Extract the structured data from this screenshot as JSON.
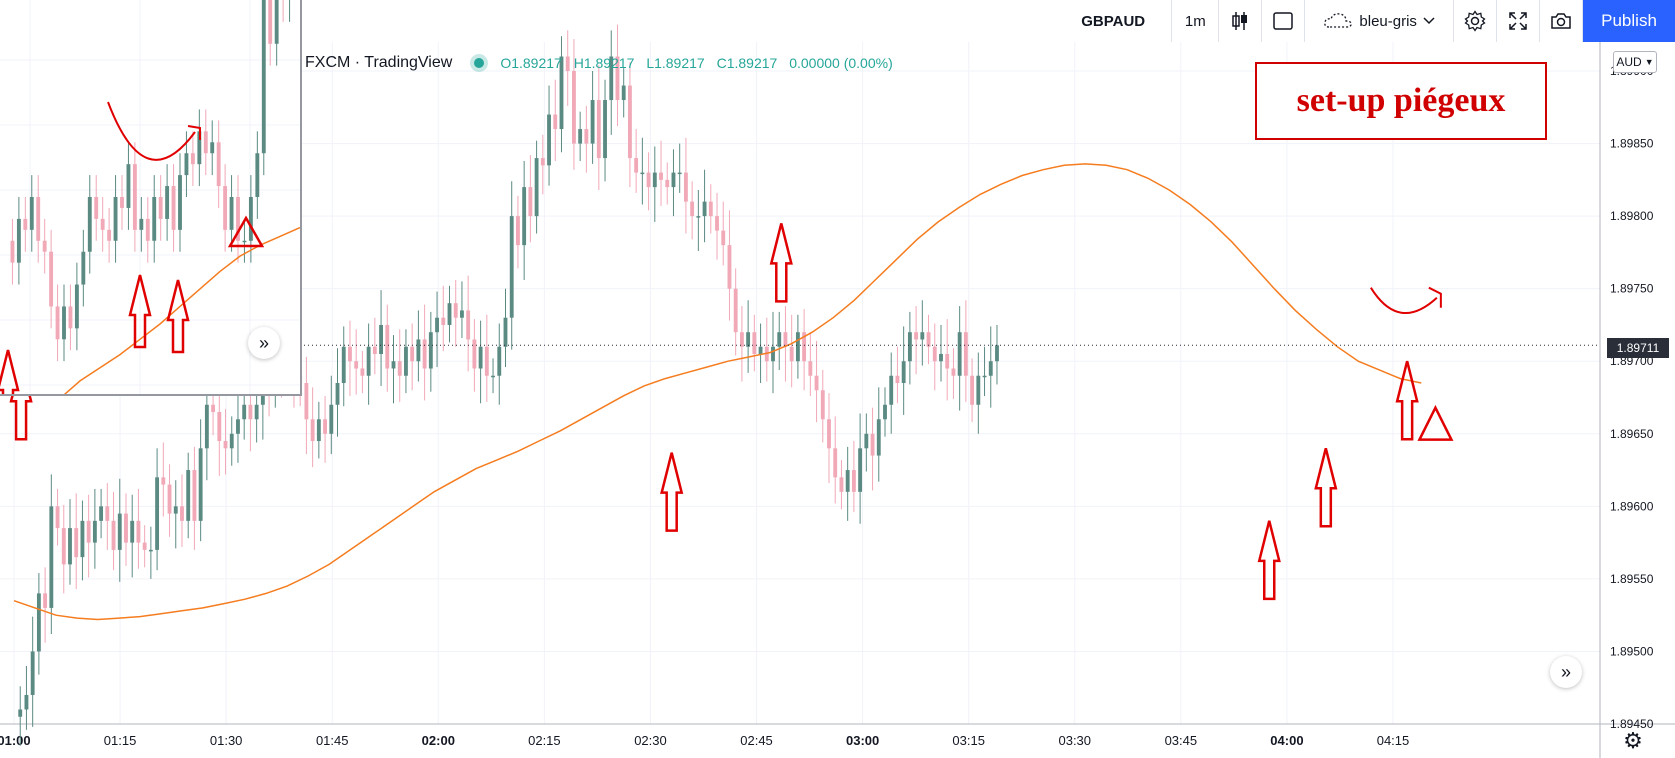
{
  "toolbar": {
    "symbol": "GBPAUD",
    "interval": "1m",
    "template": "bleu-gris",
    "publish_label": "Publish",
    "icons": [
      "candles-icon",
      "rectangle-icon",
      "cloud-icon",
      "chevron-down-icon",
      "gear-icon",
      "fullscreen-icon",
      "camera-icon"
    ]
  },
  "legend": {
    "source": "FXCM · TradingView",
    "open": "O1.89217",
    "high": "H1.89217",
    "low": "L1.89217",
    "close": "C1.89217",
    "change": "0.00000 (0.00%)"
  },
  "title": "set-up piégeux",
  "currency": "AUD",
  "last_price_label": "1.89711",
  "colors": {
    "up": "#5b8a83",
    "down": "#f1a8b7",
    "ma": "#f57c1f",
    "annotation": "#e00000",
    "grid": "#f0f3fa"
  },
  "chart_data": {
    "type": "candlestick",
    "symbol": "GBPAUD",
    "interval": "1m",
    "ylim": [
      1.8945,
      1.8992
    ],
    "yticks": [
      1.8945,
      1.895,
      1.8955,
      1.896,
      1.8965,
      1.897,
      1.8975,
      1.898,
      1.8985,
      1.899
    ],
    "ytick_labels": [
      "1.89450",
      "1.89500",
      "1.89550",
      "1.89600",
      "1.89650",
      "1.89700",
      "1.89750",
      "1.89800",
      "1.89850",
      "1.89900"
    ],
    "xlim_minutes": [
      0,
      139
    ],
    "xticks": [
      {
        "label": "01:00",
        "min": 0,
        "bold": true
      },
      {
        "label": "01:15",
        "min": 15
      },
      {
        "label": "01:30",
        "min": 30
      },
      {
        "label": "01:45",
        "min": 45
      },
      {
        "label": "02:00",
        "min": 60,
        "bold": true
      },
      {
        "label": "02:15",
        "min": 75
      },
      {
        "label": "02:30",
        "min": 90
      },
      {
        "label": "02:45",
        "min": 105
      },
      {
        "label": "03:00",
        "min": 120,
        "bold": true
      },
      {
        "label": "03:15",
        "min": 135
      },
      {
        "label": "03:30",
        "min": 150
      },
      {
        "label": "03:45",
        "min": 165
      },
      {
        "label": "04:00",
        "min": 180,
        "bold": true
      },
      {
        "label": "04:15",
        "min": 195
      }
    ],
    "close": [
      1.89455,
      1.8946,
      1.8947,
      1.895,
      1.8954,
      1.8953,
      1.896,
      1.89585,
      1.8956,
      1.89585,
      1.89565,
      1.8959,
      1.89575,
      1.8959,
      1.896,
      1.8959,
      1.8957,
      1.89595,
      1.89575,
      1.8959,
      1.89575,
      1.8957,
      1.8957,
      1.8962,
      1.89615,
      1.89595,
      1.896,
      1.8959,
      1.89625,
      1.8959,
      1.8964,
      1.8967,
      1.89665,
      1.89645,
      1.8964,
      1.8965,
      1.8966,
      1.8967,
      1.8966,
      1.8967,
      1.8969,
      1.8968,
      1.897,
      1.89695,
      1.8971,
      1.8969,
      1.89685,
      1.8966,
      1.89645,
      1.8966,
      1.8965,
      1.8967,
      1.89685,
      1.8971,
      1.897,
      1.89695,
      1.8969,
      1.8971,
      1.89705,
      1.89725,
      1.89695,
      1.897,
      1.8969,
      1.8971,
      1.897,
      1.89715,
      1.89695,
      1.8972,
      1.8973,
      1.89725,
      1.8974,
      1.8973,
      1.89735,
      1.89715,
      1.89695,
      1.8971,
      1.8969,
      1.8969,
      1.8971,
      1.8973,
      1.898,
      1.8978,
      1.8982,
      1.898,
      1.8984,
      1.89835,
      1.8987,
      1.8986,
      1.8991,
      1.899,
      1.8985,
      1.8986,
      1.8985,
      1.8988,
      1.8984,
      1.8988,
      1.8991,
      1.8988,
      1.8989,
      1.8984,
      1.8983,
      1.8983,
      1.8982,
      1.8983,
      1.89825,
      1.8982,
      1.8983,
      1.8983,
      1.8981,
      1.898,
      1.898,
      1.8981,
      1.898,
      1.8979,
      1.8978,
      1.8975,
      1.8972,
      1.8971,
      1.8972,
      1.89705,
      1.8971,
      1.897,
      1.8971,
      1.8972,
      1.8971,
      1.897,
      1.8972,
      1.897,
      1.8969,
      1.8968,
      1.8966,
      1.8964,
      1.8962,
      1.8961,
      1.89625,
      1.8961,
      1.8964,
      1.8965,
      1.89635,
      1.8966,
      1.8967,
      1.8969,
      1.89685,
      1.897,
      1.8972,
      1.89715,
      1.8972,
      1.8971,
      1.897,
      1.89705,
      1.89695,
      1.8969,
      1.8972,
      1.8969,
      1.8967,
      1.8969,
      1.8969,
      1.897,
      1.89711
    ],
    "ma": [
      1.89535,
      1.8953,
      1.89525,
      1.89523,
      1.89522,
      1.89523,
      1.89524,
      1.89526,
      1.89528,
      1.8953,
      1.89533,
      1.89536,
      1.8954,
      1.89545,
      1.89552,
      1.8956,
      1.8957,
      1.8958,
      1.8959,
      1.896,
      1.8961,
      1.89618,
      1.89626,
      1.89632,
      1.89638,
      1.89645,
      1.89652,
      1.8966,
      1.89668,
      1.89676,
      1.89683,
      1.89688,
      1.89692,
      1.89696,
      1.897,
      1.89703,
      1.89706,
      1.89712,
      1.8972,
      1.8973,
      1.89742,
      1.89756,
      1.8977,
      1.89784,
      1.89796,
      1.89806,
      1.89815,
      1.89822,
      1.89828,
      1.89832,
      1.89835,
      1.89836,
      1.89835,
      1.89832,
      1.89826,
      1.89818,
      1.89808,
      1.89796,
      1.89782,
      1.89766,
      1.8975,
      1.89735,
      1.89722,
      1.8971,
      1.897,
      1.89694,
      1.89688,
      1.89685
    ]
  },
  "annotations": {
    "arrows_main": [
      {
        "x_min": 1,
        "y": 1.897
      },
      {
        "x_min": 93,
        "y": 1.89637
      },
      {
        "x_min": 108.5,
        "y": 1.89795
      },
      {
        "x_min": 177.5,
        "y": 1.8959
      },
      {
        "x_min": 185.5,
        "y": 1.8964
      },
      {
        "x_min": 197,
        "y": 1.897
      }
    ],
    "triangle_main": {
      "x_min": 201,
      "y": 1.89668
    },
    "curve_main": {
      "x_min": 193,
      "y": 1.8973
    }
  }
}
